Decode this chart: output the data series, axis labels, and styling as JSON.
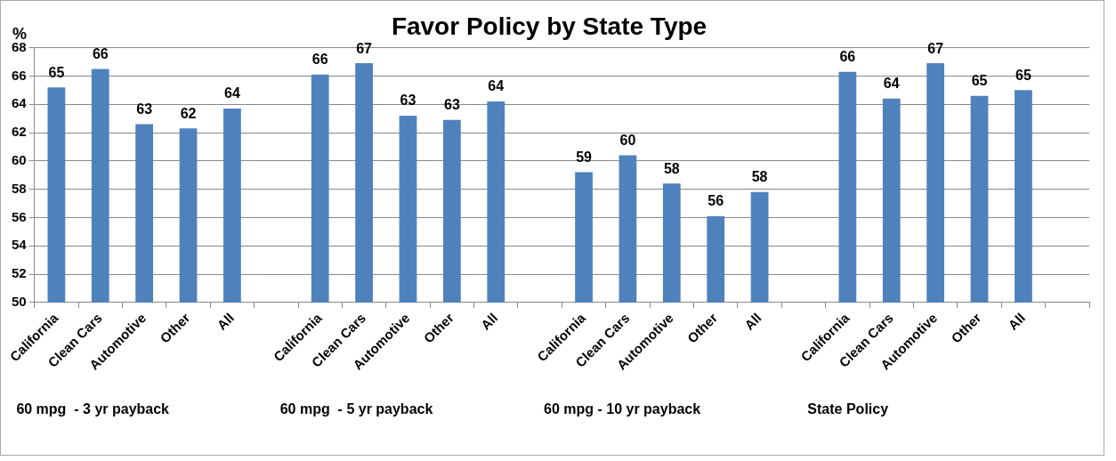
{
  "chart_data": {
    "type": "bar",
    "title": "Favor Policy by State Type",
    "ylabel": "%",
    "categories": [
      "California",
      "Clean Cars",
      "Automotive",
      "Other",
      "All",
      null,
      "California",
      "Clean Cars",
      "Automotive",
      "Other",
      "All",
      null,
      "California",
      "Clean Cars",
      "Automotive",
      "Other",
      "All",
      null,
      "California",
      "Clean Cars",
      "Automotive",
      "Other",
      "All",
      null
    ],
    "values": [
      65.2,
      66.5,
      62.6,
      62.3,
      63.7,
      null,
      66.1,
      66.9,
      63.2,
      62.9,
      64.2,
      null,
      59.2,
      60.4,
      58.4,
      56.1,
      57.8,
      null,
      66.3,
      64.4,
      66.9,
      64.6,
      65.0,
      null
    ],
    "value_labels": [
      "65",
      "66",
      "63",
      "62",
      "64",
      null,
      "66",
      "67",
      "63",
      "63",
      "64",
      null,
      "59",
      "60",
      "58",
      "56",
      "58",
      null,
      "66",
      "64",
      "67",
      "65",
      "65",
      null
    ],
    "color": "#4f81bd",
    "ylim": [
      50,
      68
    ],
    "yticks": [
      50,
      52,
      54,
      56,
      58,
      60,
      62,
      64,
      66,
      68
    ],
    "grid": "y",
    "legend": false,
    "annotations": [
      "60 mpg  - 3 yr payback",
      "60 mpg  - 5 yr payback",
      "60 mpg - 10 yr payback",
      "State Policy"
    ]
  }
}
